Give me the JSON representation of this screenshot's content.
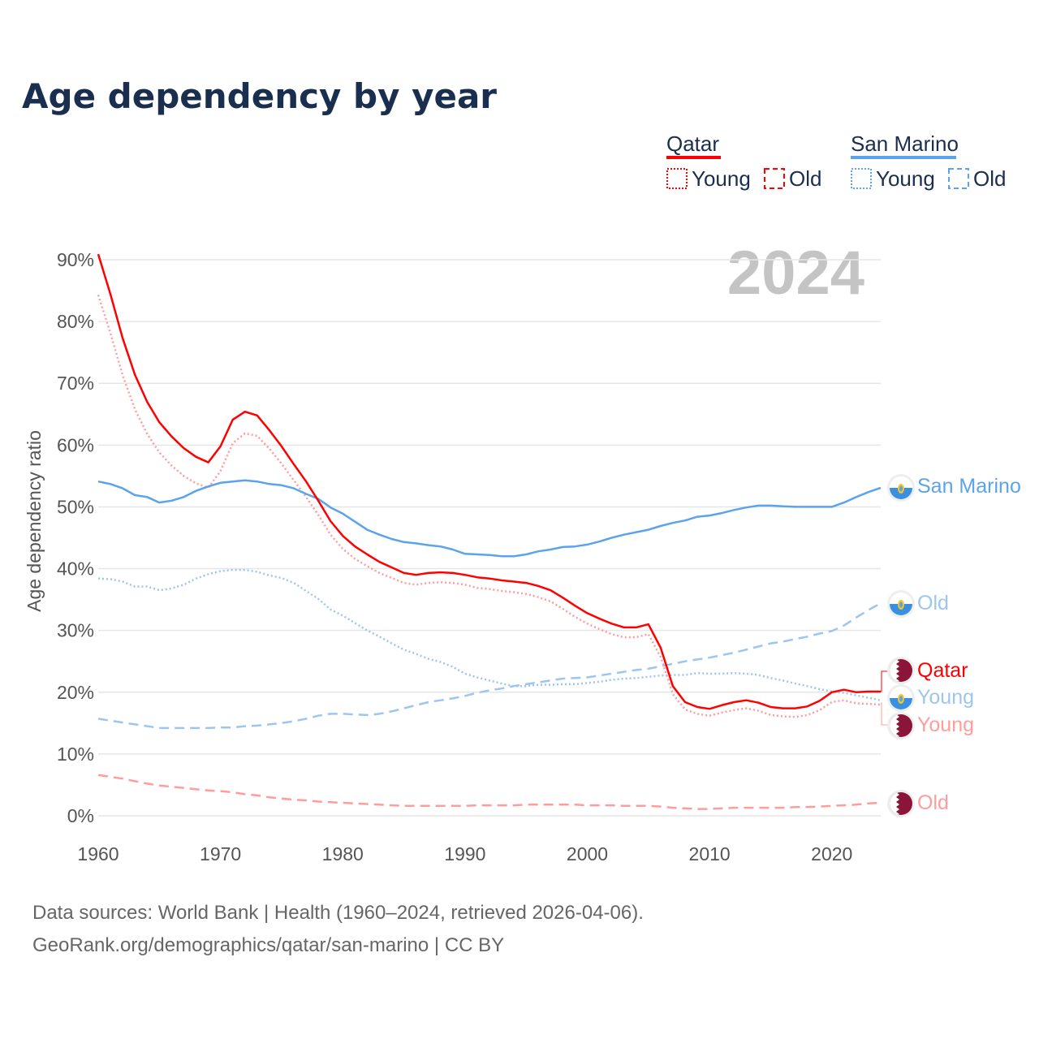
{
  "title": "Age dependency by year",
  "year_watermark": "2024",
  "footer": {
    "line1": "Data sources: World Bank | Health (1960–2024, retrieved 2026-04-06).",
    "line2": "GeoRank.org/demographics/qatar/san-marino | CC BY"
  },
  "legend": {
    "qatar": {
      "name": "Qatar",
      "young": "Young",
      "old": "Old"
    },
    "san_marino": {
      "name": "San Marino",
      "young": "Young",
      "old": "Old"
    }
  },
  "end_labels": {
    "san_marino_total": "San Marino",
    "san_marino_old": "Old",
    "qatar_total": "Qatar",
    "san_marino_young": "Young",
    "qatar_young": "Young",
    "qatar_old": "Old"
  },
  "colors": {
    "qatar": "#ff0000",
    "qatar_light": "#ff9c9c",
    "san_marino": "#5ba3ea",
    "san_marino_light": "#9cc6f0",
    "qatar_flag": "#8a1538",
    "title": "#1a2e4f"
  },
  "chart_data": {
    "type": "line",
    "title": "Age dependency by year",
    "xlabel": "",
    "ylabel": "Age dependency ratio",
    "xlim": [
      1960,
      2024
    ],
    "ylim": [
      0,
      90
    ],
    "x_ticks": [
      "1960",
      "1970",
      "1980",
      "1990",
      "2000",
      "2010",
      "2020"
    ],
    "y_ticks": [
      "0%",
      "10%",
      "20%",
      "30%",
      "40%",
      "50%",
      "60%",
      "70%",
      "80%",
      "90%"
    ],
    "grid": true,
    "start_year": 1960,
    "series": [
      {
        "key": "qatar_total",
        "name": "Qatar",
        "style": "solid",
        "values": [
          90.9,
          84.4,
          77.3,
          71.4,
          67.0,
          63.7,
          61.4,
          59.5,
          58.1,
          57.2,
          59.8,
          64.1,
          65.4,
          64.8,
          62.4,
          59.8,
          56.9,
          54.1,
          51.0,
          47.7,
          45.3,
          43.6,
          42.3,
          41.1,
          40.2,
          39.3,
          39.0,
          39.3,
          39.4,
          39.3,
          39.0,
          38.6,
          38.4,
          38.1,
          37.9,
          37.7,
          37.2,
          36.5,
          35.3,
          34.0,
          32.8,
          31.9,
          31.1,
          30.5,
          30.5,
          31.0,
          27.2,
          21.0,
          18.4,
          17.6,
          17.3,
          17.9,
          18.4,
          18.7,
          18.3,
          17.6,
          17.4,
          17.4,
          17.7,
          18.6,
          20.0,
          20.4,
          20.0,
          20.1,
          20.1
        ]
      },
      {
        "key": "qatar_young",
        "name": "Qatar Young",
        "style": "dotted",
        "values": [
          84.3,
          78.1,
          71.3,
          65.8,
          61.8,
          58.8,
          56.7,
          55.0,
          53.8,
          53.1,
          55.8,
          60.3,
          61.9,
          61.5,
          59.4,
          57.0,
          54.3,
          51.6,
          48.7,
          45.5,
          43.2,
          41.6,
          40.4,
          39.3,
          38.5,
          37.7,
          37.4,
          37.7,
          37.8,
          37.7,
          37.4,
          36.9,
          36.7,
          36.4,
          36.2,
          35.9,
          35.4,
          34.7,
          33.5,
          32.2,
          31.1,
          30.2,
          29.4,
          28.9,
          28.9,
          29.4,
          25.7,
          19.7,
          17.2,
          16.5,
          16.2,
          16.7,
          17.1,
          17.4,
          17.0,
          16.3,
          16.1,
          16.0,
          16.3,
          17.1,
          18.4,
          18.7,
          18.2,
          18.1,
          18.0
        ]
      },
      {
        "key": "qatar_old",
        "name": "Qatar Old",
        "style": "dashed",
        "values": [
          6.6,
          6.3,
          6.0,
          5.6,
          5.2,
          4.9,
          4.7,
          4.5,
          4.3,
          4.1,
          4.0,
          3.8,
          3.5,
          3.3,
          3.0,
          2.8,
          2.6,
          2.5,
          2.3,
          2.2,
          2.1,
          2.0,
          1.9,
          1.8,
          1.7,
          1.6,
          1.6,
          1.6,
          1.6,
          1.6,
          1.6,
          1.7,
          1.7,
          1.7,
          1.7,
          1.8,
          1.8,
          1.8,
          1.8,
          1.8,
          1.7,
          1.7,
          1.7,
          1.6,
          1.6,
          1.6,
          1.5,
          1.3,
          1.2,
          1.1,
          1.1,
          1.2,
          1.3,
          1.3,
          1.3,
          1.3,
          1.3,
          1.4,
          1.4,
          1.5,
          1.6,
          1.7,
          1.8,
          2.0,
          2.1
        ]
      },
      {
        "key": "san_marino_total",
        "name": "San Marino",
        "style": "solid",
        "values": [
          54.1,
          53.7,
          53.0,
          51.9,
          51.6,
          50.7,
          51.0,
          51.6,
          52.6,
          53.3,
          53.9,
          54.1,
          54.3,
          54.1,
          53.7,
          53.5,
          53.0,
          52.1,
          51.3,
          49.9,
          48.9,
          47.6,
          46.3,
          45.5,
          44.8,
          44.3,
          44.1,
          43.8,
          43.6,
          43.1,
          42.4,
          42.3,
          42.2,
          42.0,
          42.0,
          42.3,
          42.8,
          43.1,
          43.5,
          43.6,
          43.9,
          44.4,
          45.0,
          45.5,
          45.9,
          46.3,
          46.9,
          47.4,
          47.8,
          48.4,
          48.6,
          49.0,
          49.5,
          49.9,
          50.2,
          50.2,
          50.1,
          50.0,
          50.0,
          50.0,
          50.0,
          50.7,
          51.6,
          52.4,
          53.1
        ]
      },
      {
        "key": "san_marino_young",
        "name": "San Marino Young",
        "style": "dotted",
        "values": [
          38.4,
          38.3,
          37.9,
          37.1,
          37.1,
          36.5,
          36.8,
          37.4,
          38.4,
          39.1,
          39.6,
          39.8,
          39.8,
          39.5,
          38.9,
          38.5,
          37.7,
          36.4,
          35.1,
          33.4,
          32.4,
          31.2,
          30.0,
          29.0,
          27.9,
          26.9,
          26.2,
          25.4,
          24.9,
          24.1,
          23.0,
          22.4,
          21.9,
          21.4,
          21.0,
          21.0,
          21.2,
          21.2,
          21.3,
          21.3,
          21.5,
          21.7,
          22.0,
          22.2,
          22.3,
          22.5,
          22.7,
          22.8,
          22.8,
          23.1,
          23.0,
          23.0,
          23.1,
          23.0,
          22.8,
          22.3,
          21.9,
          21.4,
          21.0,
          20.5,
          20.1,
          19.9,
          19.5,
          19.1,
          18.7
        ]
      },
      {
        "key": "san_marino_old",
        "name": "San Marino Old",
        "style": "dashed",
        "values": [
          15.7,
          15.4,
          15.1,
          14.8,
          14.5,
          14.2,
          14.2,
          14.2,
          14.2,
          14.2,
          14.3,
          14.3,
          14.5,
          14.6,
          14.8,
          15.0,
          15.3,
          15.7,
          16.2,
          16.5,
          16.5,
          16.4,
          16.3,
          16.5,
          16.9,
          17.4,
          17.9,
          18.4,
          18.7,
          19.0,
          19.4,
          19.9,
          20.3,
          20.6,
          21.0,
          21.3,
          21.6,
          21.9,
          22.2,
          22.3,
          22.4,
          22.7,
          23.0,
          23.3,
          23.6,
          23.8,
          24.2,
          24.6,
          25.0,
          25.3,
          25.6,
          26.0,
          26.4,
          26.9,
          27.4,
          27.9,
          28.2,
          28.6,
          29.0,
          29.5,
          29.9,
          30.8,
          32.1,
          33.3,
          34.4
        ]
      }
    ]
  }
}
